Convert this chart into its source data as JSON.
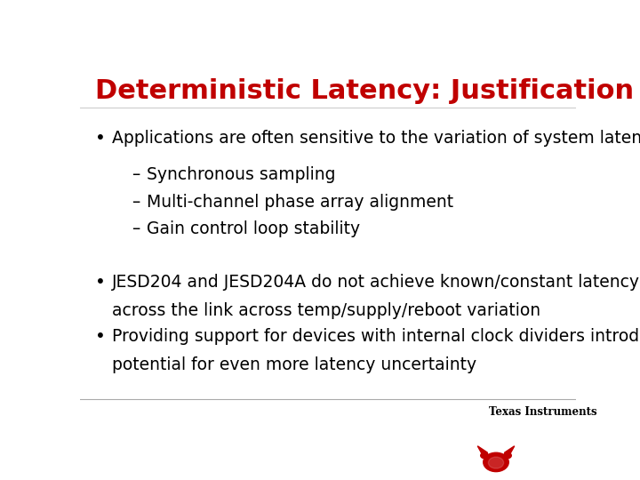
{
  "title": "Deterministic Latency: Justification",
  "title_color": "#C00000",
  "title_fontsize": 22,
  "background_color": "#FFFFFF",
  "bullet1": "Applications are often sensitive to the variation of system latency",
  "sub_bullets": [
    "Synchronous sampling",
    "Multi-channel phase array alignment",
    "Gain control loop stability"
  ],
  "bullet2_line1": "JESD204 and JESD204A do not achieve known/constant latency",
  "bullet2_line2": "across the link across temp/supply/reboot variation",
  "bullet3_line1": "Providing support for devices with internal clock dividers introduces",
  "bullet3_line2": "potential for even more latency uncertainty",
  "text_color": "#000000",
  "bullet_fontsize": 13.5,
  "sub_bullet_fontsize": 13.5,
  "footer_line_color": "#AAAAAA",
  "ti_text_color": "#000000",
  "ti_red": "#C00000",
  "ti_label": "Texas Instruments"
}
